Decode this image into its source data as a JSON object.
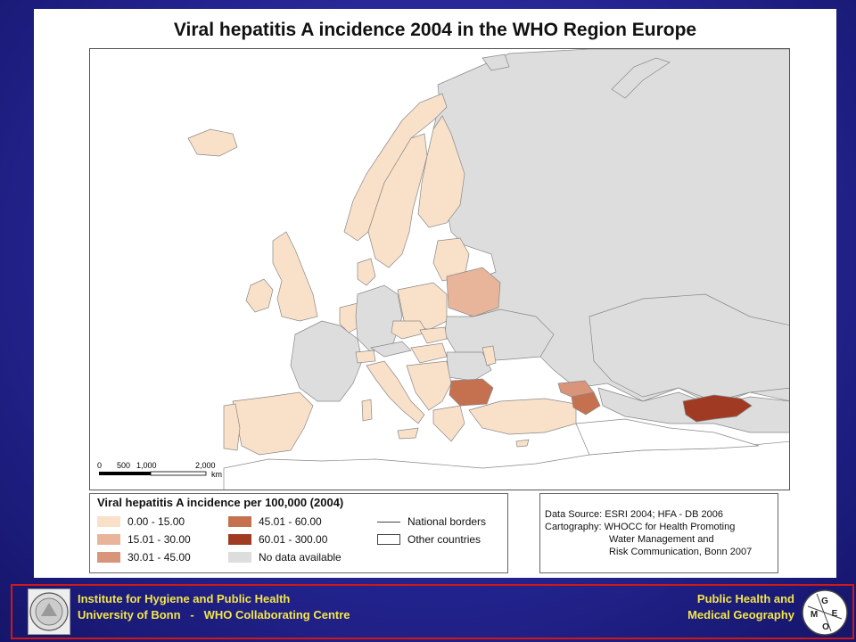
{
  "title": "Viral hepatitis A incidence 2004 in the WHO Region Europe",
  "colors": {
    "class_0_15": "#f9e1c9",
    "class_15_30": "#e8b59b",
    "class_30_45": "#d8957a",
    "class_45_60": "#c5714f",
    "class_60_300": "#a13a23",
    "no_data": "#dddddd",
    "other_countries": "#ffffff",
    "border": "#888888"
  },
  "scale_bar": {
    "ticks": [
      "0",
      "500",
      "1,000",
      "2,000"
    ],
    "unit": "km"
  },
  "legend": {
    "title": "Viral hepatitis A incidence per 100,000 (2004)",
    "classes": [
      {
        "label": "0.00 - 15.00",
        "color": "#f9e1c9"
      },
      {
        "label": "15.01 - 30.00",
        "color": "#e8b59b"
      },
      {
        "label": "30.01 - 45.00",
        "color": "#d8957a"
      },
      {
        "label": "45.01 - 60.00",
        "color": "#c5714f"
      },
      {
        "label": "60.01 - 300.00",
        "color": "#a13a23"
      },
      {
        "label": "No data available",
        "color": "#dddddd"
      }
    ],
    "national_borders_label": "National borders",
    "other_countries_label": "Other countries"
  },
  "source": {
    "line1": "Data Source: ESRI 2004; HFA - DB 2006",
    "line2": "Cartography: WHOCC for Health Promoting",
    "line3": "Water Management and",
    "line4": "Risk Communication, Bonn 2007"
  },
  "footer": {
    "left_line1": "Institute for Hygiene and Public Health",
    "left_line2": "University of Bonn   -   WHO Collaborating Centre",
    "right_line1": "Public Health and",
    "right_line2": "Medical Geography",
    "logo_letters": [
      "G",
      "E",
      "M",
      "O"
    ]
  }
}
